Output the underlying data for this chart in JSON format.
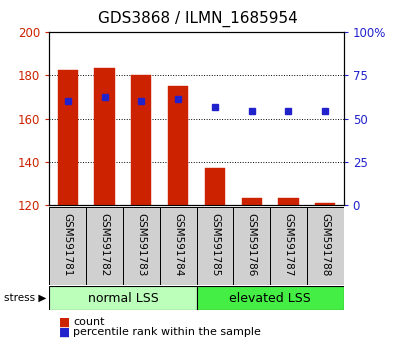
{
  "title": "GDS3868 / ILMN_1685954",
  "samples": [
    "GSM591781",
    "GSM591782",
    "GSM591783",
    "GSM591784",
    "GSM591785",
    "GSM591786",
    "GSM591787",
    "GSM591788"
  ],
  "bar_values": [
    182.5,
    183.5,
    180.0,
    175.0,
    137.0,
    123.5,
    123.5,
    121.0
  ],
  "bar_bottom": 120,
  "percentile_values": [
    168,
    170,
    168,
    169,
    165.5,
    163.5,
    163.5,
    163.5
  ],
  "bar_color": "#cc2200",
  "percentile_color": "#2222cc",
  "ylim_left": [
    120,
    200
  ],
  "ylim_right": [
    0,
    100
  ],
  "yticks_left": [
    120,
    140,
    160,
    180,
    200
  ],
  "ytick_labels_right": [
    "0",
    "25",
    "50",
    "75",
    "100%"
  ],
  "yticks_right": [
    0,
    25,
    50,
    75,
    100
  ],
  "groups": [
    {
      "label": "normal LSS",
      "start": 0,
      "end": 4,
      "color": "#bbffbb"
    },
    {
      "label": "elevated LSS",
      "start": 4,
      "end": 8,
      "color": "#44ee44"
    }
  ],
  "stress_label": "stress",
  "legend_count_label": "count",
  "legend_percentile_label": "percentile rank within the sample",
  "plot_bg_color": "#ffffff",
  "tick_color_left": "#cc2200",
  "tick_color_right": "#2222cc",
  "grid_color": "#000000",
  "bar_width": 0.55,
  "sample_box_color": "#d0d0d0"
}
